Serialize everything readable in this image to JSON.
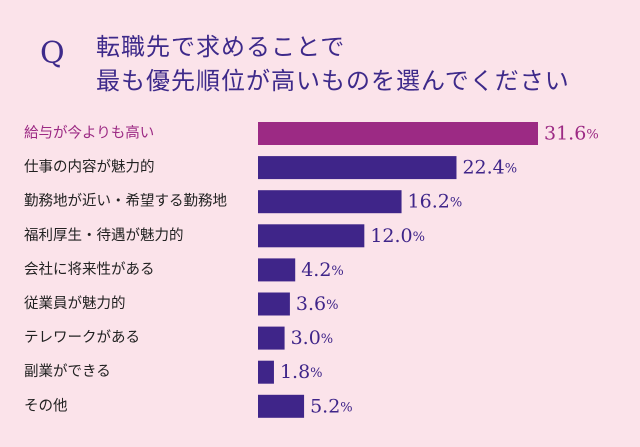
{
  "question": {
    "marker": "Q",
    "lines": [
      "転職先で求めることで",
      "最も優先順位が高いものを選んでください"
    ]
  },
  "colors": {
    "background": "#fbe3ea",
    "highlight": "#9c2a84",
    "bar": "#3f2589",
    "text": "#222222"
  },
  "chart_data": {
    "type": "bar",
    "orientation": "horizontal",
    "unit": "%",
    "categories": [
      "給与が今よりも高い",
      "仕事の内容が魅力的",
      "勤務地が近い・希望する勤務地",
      "福利厚生・待遇が魅力的",
      "会社に将来性がある",
      "従業員が魅力的",
      "テレワークがある",
      "副業ができる",
      "その他"
    ],
    "values": [
      31.6,
      22.4,
      16.2,
      12.0,
      4.2,
      3.6,
      3.0,
      1.8,
      5.2
    ],
    "labels": [
      "31.6",
      "22.4",
      "16.2",
      "12.0",
      "4.2",
      "3.6",
      "3.0",
      "1.8",
      "5.2"
    ],
    "highlight_index": 0
  }
}
